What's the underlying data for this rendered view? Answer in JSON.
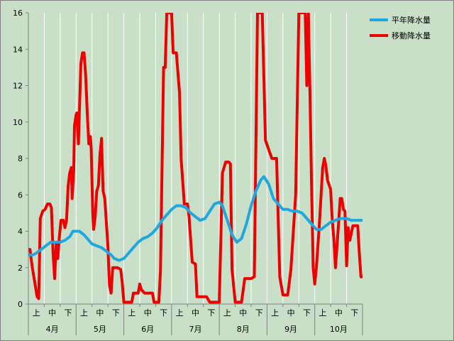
{
  "chart_data": {
    "type": "line",
    "ylim": [
      0,
      16
    ],
    "yticks": [
      0,
      2,
      4,
      6,
      8,
      10,
      12,
      14,
      16
    ],
    "grid": "vertical",
    "legend_position": "top-right",
    "months": [
      "4月",
      "5月",
      "6月",
      "7月",
      "8月",
      "9月",
      "10月"
    ],
    "periods": [
      "上",
      "中",
      "下"
    ],
    "x_range": [
      0,
      21
    ],
    "colors": {
      "background": "#c9dfc7",
      "grid": "#ffffff",
      "normal": "#21a7e0",
      "moving": "#ee0000"
    },
    "series": [
      {
        "name": "平年降水量",
        "color": "#21a7e0",
        "points": [
          [
            0,
            2.7
          ],
          [
            0.3,
            2.7
          ],
          [
            0.5,
            2.8
          ],
          [
            0.8,
            3.0
          ],
          [
            1.1,
            3.2
          ],
          [
            1.4,
            3.4
          ],
          [
            1.7,
            3.4
          ],
          [
            2.0,
            3.4
          ],
          [
            2.3,
            3.5
          ],
          [
            2.6,
            3.7
          ],
          [
            2.8,
            4.0
          ],
          [
            3.2,
            4.0
          ],
          [
            3.5,
            3.8
          ],
          [
            3.8,
            3.5
          ],
          [
            4.0,
            3.3
          ],
          [
            4.3,
            3.2
          ],
          [
            4.6,
            3.1
          ],
          [
            4.9,
            2.9
          ],
          [
            5.2,
            2.7
          ],
          [
            5.4,
            2.5
          ],
          [
            5.7,
            2.4
          ],
          [
            6.0,
            2.5
          ],
          [
            6.3,
            2.8
          ],
          [
            6.6,
            3.1
          ],
          [
            6.9,
            3.4
          ],
          [
            7.2,
            3.6
          ],
          [
            7.5,
            3.7
          ],
          [
            7.8,
            3.9
          ],
          [
            8.1,
            4.2
          ],
          [
            8.4,
            4.6
          ],
          [
            8.7,
            4.9
          ],
          [
            9.0,
            5.2
          ],
          [
            9.3,
            5.4
          ],
          [
            9.6,
            5.4
          ],
          [
            9.9,
            5.3
          ],
          [
            10.2,
            5.0
          ],
          [
            10.5,
            4.8
          ],
          [
            10.8,
            4.6
          ],
          [
            11.1,
            4.7
          ],
          [
            11.4,
            5.1
          ],
          [
            11.7,
            5.5
          ],
          [
            12.0,
            5.6
          ],
          [
            12.2,
            5.4
          ],
          [
            12.5,
            4.6
          ],
          [
            12.8,
            3.8
          ],
          [
            13.1,
            3.4
          ],
          [
            13.4,
            3.6
          ],
          [
            13.7,
            4.4
          ],
          [
            14.0,
            5.4
          ],
          [
            14.3,
            6.2
          ],
          [
            14.6,
            6.8
          ],
          [
            14.8,
            7.0
          ],
          [
            15.1,
            6.6
          ],
          [
            15.4,
            5.8
          ],
          [
            15.7,
            5.5
          ],
          [
            16.0,
            5.2
          ],
          [
            16.3,
            5.2
          ],
          [
            16.6,
            5.1
          ],
          [
            16.9,
            5.1
          ],
          [
            17.2,
            5.0
          ],
          [
            17.5,
            4.7
          ],
          [
            17.8,
            4.4
          ],
          [
            18.1,
            4.1
          ],
          [
            18.4,
            4.1
          ],
          [
            18.7,
            4.3
          ],
          [
            19.0,
            4.5
          ],
          [
            19.3,
            4.6
          ],
          [
            19.6,
            4.7
          ],
          [
            20.0,
            4.7
          ],
          [
            20.3,
            4.6
          ],
          [
            21.0,
            4.6
          ]
        ]
      },
      {
        "name": "移動降水量",
        "color": "#ee0000",
        "points": [
          [
            0,
            3.0
          ],
          [
            0.1,
            3.0
          ],
          [
            0.25,
            2.0
          ],
          [
            0.4,
            1.2
          ],
          [
            0.55,
            0.4
          ],
          [
            0.65,
            0.3
          ],
          [
            0.75,
            4.7
          ],
          [
            0.9,
            5.1
          ],
          [
            1.05,
            5.2
          ],
          [
            1.2,
            5.5
          ],
          [
            1.35,
            5.5
          ],
          [
            1.45,
            5.3
          ],
          [
            1.55,
            2.8
          ],
          [
            1.65,
            1.4
          ],
          [
            1.75,
            3.3
          ],
          [
            1.85,
            2.5
          ],
          [
            1.95,
            3.7
          ],
          [
            2.05,
            4.6
          ],
          [
            2.2,
            4.6
          ],
          [
            2.3,
            4.2
          ],
          [
            2.4,
            4.6
          ],
          [
            2.5,
            6.5
          ],
          [
            2.6,
            7.2
          ],
          [
            2.7,
            7.5
          ],
          [
            2.75,
            5.8
          ],
          [
            2.85,
            7.3
          ],
          [
            2.9,
            9.8
          ],
          [
            3.0,
            10.4
          ],
          [
            3.05,
            10.5
          ],
          [
            3.1,
            9.5
          ],
          [
            3.15,
            8.8
          ],
          [
            3.2,
            10.4
          ],
          [
            3.3,
            13.2
          ],
          [
            3.4,
            13.8
          ],
          [
            3.5,
            13.8
          ],
          [
            3.6,
            12.6
          ],
          [
            3.7,
            10.5
          ],
          [
            3.8,
            8.8
          ],
          [
            3.9,
            9.2
          ],
          [
            3.95,
            8.5
          ],
          [
            4.05,
            5.0
          ],
          [
            4.1,
            4.1
          ],
          [
            4.2,
            4.8
          ],
          [
            4.3,
            6.2
          ],
          [
            4.4,
            6.5
          ],
          [
            4.5,
            8.2
          ],
          [
            4.6,
            9.1
          ],
          [
            4.65,
            7.5
          ],
          [
            4.7,
            6.2
          ],
          [
            4.8,
            5.8
          ],
          [
            4.9,
            4.5
          ],
          [
            5.0,
            3.2
          ],
          [
            5.05,
            2.0
          ],
          [
            5.1,
            1.0
          ],
          [
            5.2,
            0.6
          ],
          [
            5.3,
            2.0
          ],
          [
            5.4,
            2.0
          ],
          [
            5.6,
            2.0
          ],
          [
            5.8,
            1.9
          ],
          [
            5.9,
            1.2
          ],
          [
            6.0,
            0.1
          ],
          [
            6.2,
            0.1
          ],
          [
            6.5,
            0.1
          ],
          [
            6.6,
            0.6
          ],
          [
            6.9,
            0.6
          ],
          [
            7.0,
            1.1
          ],
          [
            7.1,
            0.8
          ],
          [
            7.3,
            0.6
          ],
          [
            7.6,
            0.6
          ],
          [
            7.8,
            0.6
          ],
          [
            7.9,
            0.1
          ],
          [
            8.2,
            0.1
          ],
          [
            8.3,
            1.8
          ],
          [
            8.5,
            13.0
          ],
          [
            8.6,
            13.0
          ],
          [
            8.7,
            16.0
          ],
          [
            9.0,
            16.0
          ],
          [
            9.1,
            13.8
          ],
          [
            9.3,
            13.8
          ],
          [
            9.5,
            11.6
          ],
          [
            9.6,
            8.0
          ],
          [
            9.8,
            5.5
          ],
          [
            10.0,
            5.5
          ],
          [
            10.1,
            4.8
          ],
          [
            10.3,
            2.3
          ],
          [
            10.5,
            2.2
          ],
          [
            10.6,
            0.4
          ],
          [
            11.0,
            0.4
          ],
          [
            11.2,
            0.4
          ],
          [
            11.4,
            0.1
          ],
          [
            12.0,
            0.1
          ],
          [
            12.2,
            7.2
          ],
          [
            12.4,
            7.8
          ],
          [
            12.6,
            7.8
          ],
          [
            12.7,
            7.7
          ],
          [
            12.8,
            1.9
          ],
          [
            13.0,
            0.1
          ],
          [
            13.4,
            0.1
          ],
          [
            13.6,
            1.4
          ],
          [
            14.0,
            1.4
          ],
          [
            14.2,
            1.5
          ],
          [
            14.4,
            16.0
          ],
          [
            14.7,
            16.0
          ],
          [
            14.9,
            9.0
          ],
          [
            15.1,
            8.5
          ],
          [
            15.3,
            8.0
          ],
          [
            15.6,
            8.0
          ],
          [
            15.8,
            1.5
          ],
          [
            16.0,
            0.5
          ],
          [
            16.3,
            0.5
          ],
          [
            16.5,
            1.9
          ],
          [
            16.8,
            6.0
          ],
          [
            17.0,
            16.0
          ],
          [
            17.4,
            16.0
          ],
          [
            17.5,
            12.0
          ],
          [
            17.6,
            16.0
          ],
          [
            17.7,
            11.5
          ],
          [
            17.8,
            6.5
          ],
          [
            17.9,
            2.0
          ],
          [
            18.0,
            1.1
          ],
          [
            18.1,
            2.0
          ],
          [
            18.3,
            4.5
          ],
          [
            18.5,
            7.5
          ],
          [
            18.6,
            8.0
          ],
          [
            18.7,
            7.6
          ],
          [
            18.8,
            6.8
          ],
          [
            19.0,
            6.3
          ],
          [
            19.1,
            4.6
          ],
          [
            19.2,
            3.6
          ],
          [
            19.3,
            2.0
          ],
          [
            19.4,
            3.2
          ],
          [
            19.5,
            4.5
          ],
          [
            19.6,
            5.8
          ],
          [
            19.7,
            5.8
          ],
          [
            19.8,
            5.2
          ],
          [
            19.9,
            5.1
          ],
          [
            20.0,
            2.1
          ],
          [
            20.1,
            4.2
          ],
          [
            20.2,
            3.5
          ],
          [
            20.4,
            4.3
          ],
          [
            20.7,
            4.3
          ],
          [
            20.8,
            2.8
          ],
          [
            20.9,
            1.5
          ],
          [
            21.0,
            1.5
          ]
        ]
      }
    ]
  }
}
